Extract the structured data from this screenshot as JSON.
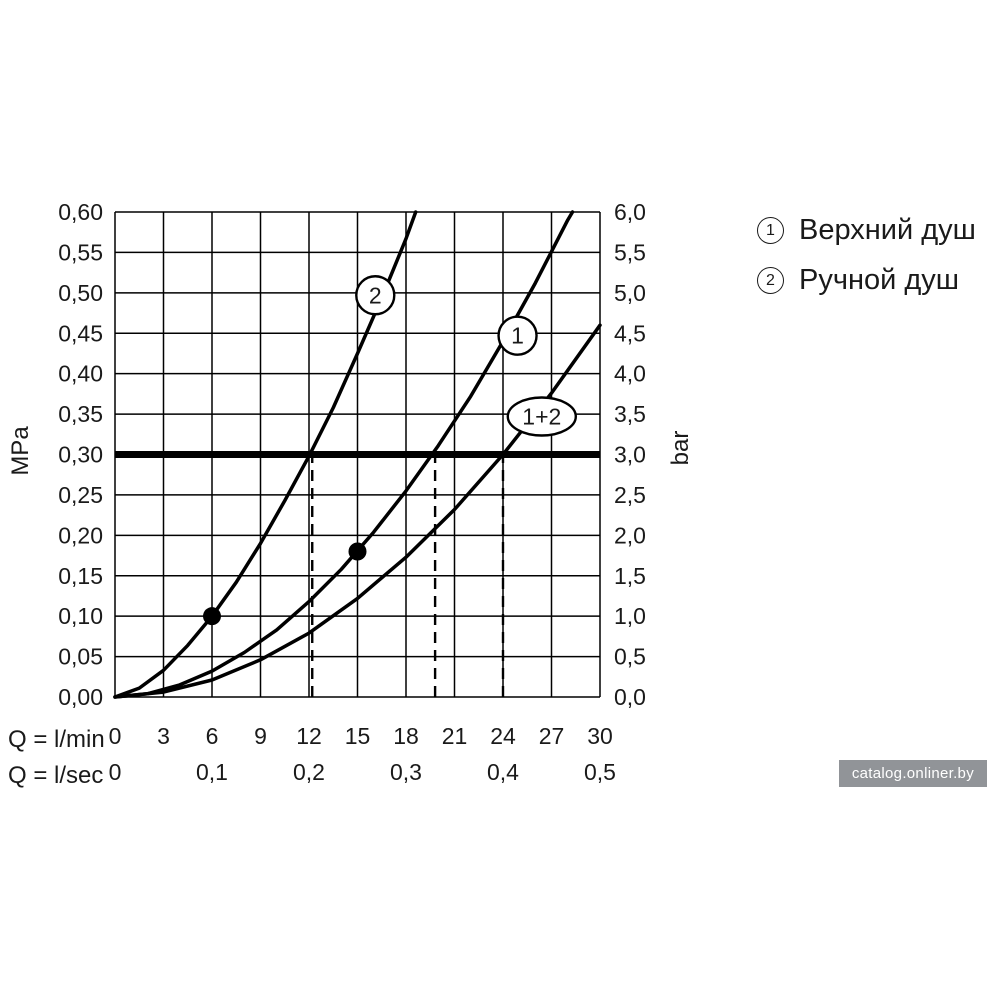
{
  "legend": {
    "items": [
      {
        "num": "1",
        "label": "Верхний душ"
      },
      {
        "num": "2",
        "label": "Ручной душ"
      }
    ]
  },
  "watermark": {
    "text": "catalog.onliner.by"
  },
  "chart_data": {
    "type": "line",
    "x_axis": {
      "label_lmin": "Q = l/min",
      "label_lsec": "Q = l/sec",
      "lmin_ticks": [
        "0",
        "3",
        "6",
        "9",
        "12",
        "15",
        "18",
        "21",
        "24",
        "27",
        "30"
      ],
      "lsec_ticks": [
        "0",
        "0,1",
        "0,2",
        "0,3",
        "0,4",
        "0,5"
      ],
      "range": [
        0,
        30
      ]
    },
    "y_axis_left": {
      "label": "MPa",
      "ticks": [
        "0,60",
        "0,55",
        "0,50",
        "0,45",
        "0,40",
        "0,35",
        "0,30",
        "0,25",
        "0,20",
        "0,15",
        "0,10",
        "0,05",
        "0,00"
      ],
      "range": [
        0,
        0.6
      ]
    },
    "y_axis_right": {
      "label": "bar",
      "ticks": [
        "6,0",
        "5,5",
        "5,0",
        "4,5",
        "4,0",
        "3,5",
        "3,0",
        "2,5",
        "2,0",
        "1,5",
        "1,0",
        "0,5",
        "0,0"
      ],
      "range": [
        0,
        6
      ]
    },
    "grid": {
      "x_step": 3,
      "y_step": 0.05
    },
    "reference_line_mpa": 0.3,
    "dashed_x_lmin": [
      12.2,
      19.8,
      24
    ],
    "markers": [
      {
        "x": 6,
        "y": 0.1
      },
      {
        "x": 15,
        "y": 0.18
      }
    ],
    "series": [
      {
        "name": "2",
        "label_pos": [
          16.1,
          0.497
        ],
        "points": [
          [
            0,
            0
          ],
          [
            1.5,
            0.011
          ],
          [
            3,
            0.033
          ],
          [
            4.5,
            0.064
          ],
          [
            6,
            0.1
          ],
          [
            7.5,
            0.142
          ],
          [
            9,
            0.19
          ],
          [
            10.5,
            0.243
          ],
          [
            12,
            0.298
          ],
          [
            13.5,
            0.358
          ],
          [
            15,
            0.425
          ],
          [
            16.5,
            0.494
          ],
          [
            18,
            0.567
          ],
          [
            18.6,
            0.6
          ]
        ]
      },
      {
        "name": "1",
        "label_pos": [
          24.9,
          0.447
        ],
        "points": [
          [
            0,
            0
          ],
          [
            2,
            0.004
          ],
          [
            4,
            0.015
          ],
          [
            6,
            0.032
          ],
          [
            8,
            0.055
          ],
          [
            10,
            0.083
          ],
          [
            12,
            0.118
          ],
          [
            14,
            0.158
          ],
          [
            16,
            0.204
          ],
          [
            18,
            0.255
          ],
          [
            20,
            0.311
          ],
          [
            22,
            0.372
          ],
          [
            24,
            0.44
          ],
          [
            26,
            0.512
          ],
          [
            28,
            0.59
          ],
          [
            28.3,
            0.6
          ]
        ]
      },
      {
        "name": "1+2",
        "label_pos": [
          26.4,
          0.347
        ],
        "points": [
          [
            0,
            0
          ],
          [
            3,
            0.006
          ],
          [
            6,
            0.021
          ],
          [
            9,
            0.046
          ],
          [
            12,
            0.079
          ],
          [
            15,
            0.122
          ],
          [
            18,
            0.173
          ],
          [
            21,
            0.232
          ],
          [
            24,
            0.3
          ],
          [
            27,
            0.376
          ],
          [
            30,
            0.46
          ]
        ]
      }
    ]
  }
}
